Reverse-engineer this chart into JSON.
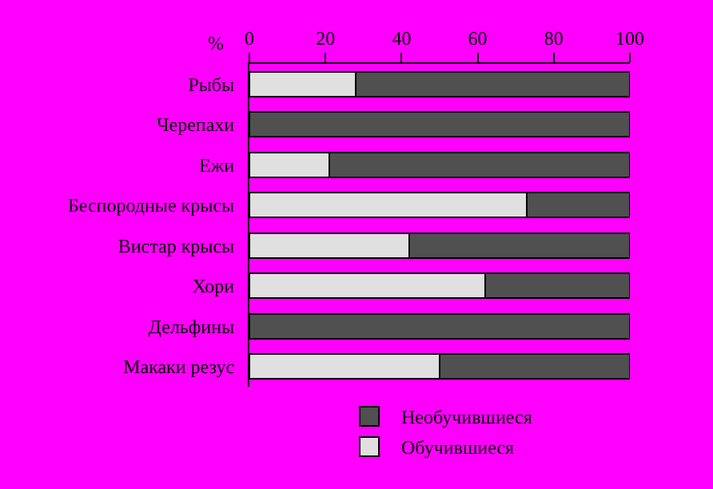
{
  "chart_data": {
    "type": "bar",
    "orientation": "horizontal",
    "stacked": true,
    "xlabel": "%",
    "categories": [
      "Рыбы",
      "Черепахи",
      "Ежи",
      "Беспородные крысы",
      "Вистар крысы",
      "Хори",
      "Дельфины",
      "Макаки резус"
    ],
    "series": [
      {
        "name": "Обучившиеся",
        "color": "#e0e0e0",
        "values": [
          28,
          0,
          21,
          73,
          42,
          62,
          0,
          50
        ]
      },
      {
        "name": "Необучившиеся",
        "color": "#505050",
        "values": [
          72,
          100,
          79,
          27,
          58,
          38,
          100,
          50
        ]
      }
    ],
    "xlim": [
      0,
      100
    ],
    "xticks": [
      0,
      20,
      40,
      60,
      80,
      100
    ],
    "grid": false,
    "legend": "bottom"
  }
}
